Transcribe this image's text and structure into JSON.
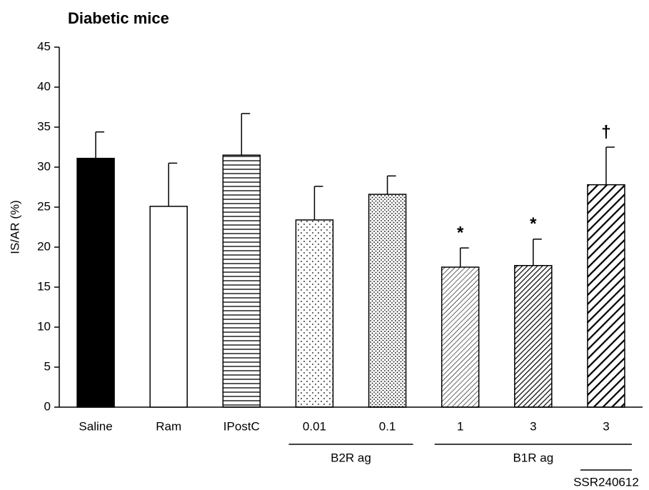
{
  "chart_data": {
    "type": "bar",
    "title": "Diabetic mice",
    "y_label": "IS/AR (%)",
    "categories": [
      "Saline",
      "Ram",
      "IPostC",
      "0.01",
      "0.1",
      "1",
      "3",
      "3"
    ],
    "values": [
      31.1,
      25.1,
      31.5,
      23.4,
      26.6,
      17.5,
      17.7,
      27.8
    ],
    "errors": [
      3.3,
      5.4,
      5.2,
      4.2,
      2.3,
      2.4,
      3.3,
      4.7
    ],
    "fills": [
      "solid",
      "none",
      "hlines",
      "dots-sparse",
      "dots-dense",
      "diag-thin",
      "diag-medium",
      "diag-thick"
    ],
    "value_annotations": [
      null,
      null,
      null,
      null,
      null,
      "*",
      "*",
      "†"
    ],
    "group_labels": [
      "B2R ag",
      "B1R ag",
      "SSR240612"
    ],
    "color": "#000000",
    "ylim": [
      0,
      45
    ],
    "yticks": [
      0,
      5,
      10,
      15,
      20,
      25,
      30,
      35,
      40,
      45
    ]
  }
}
